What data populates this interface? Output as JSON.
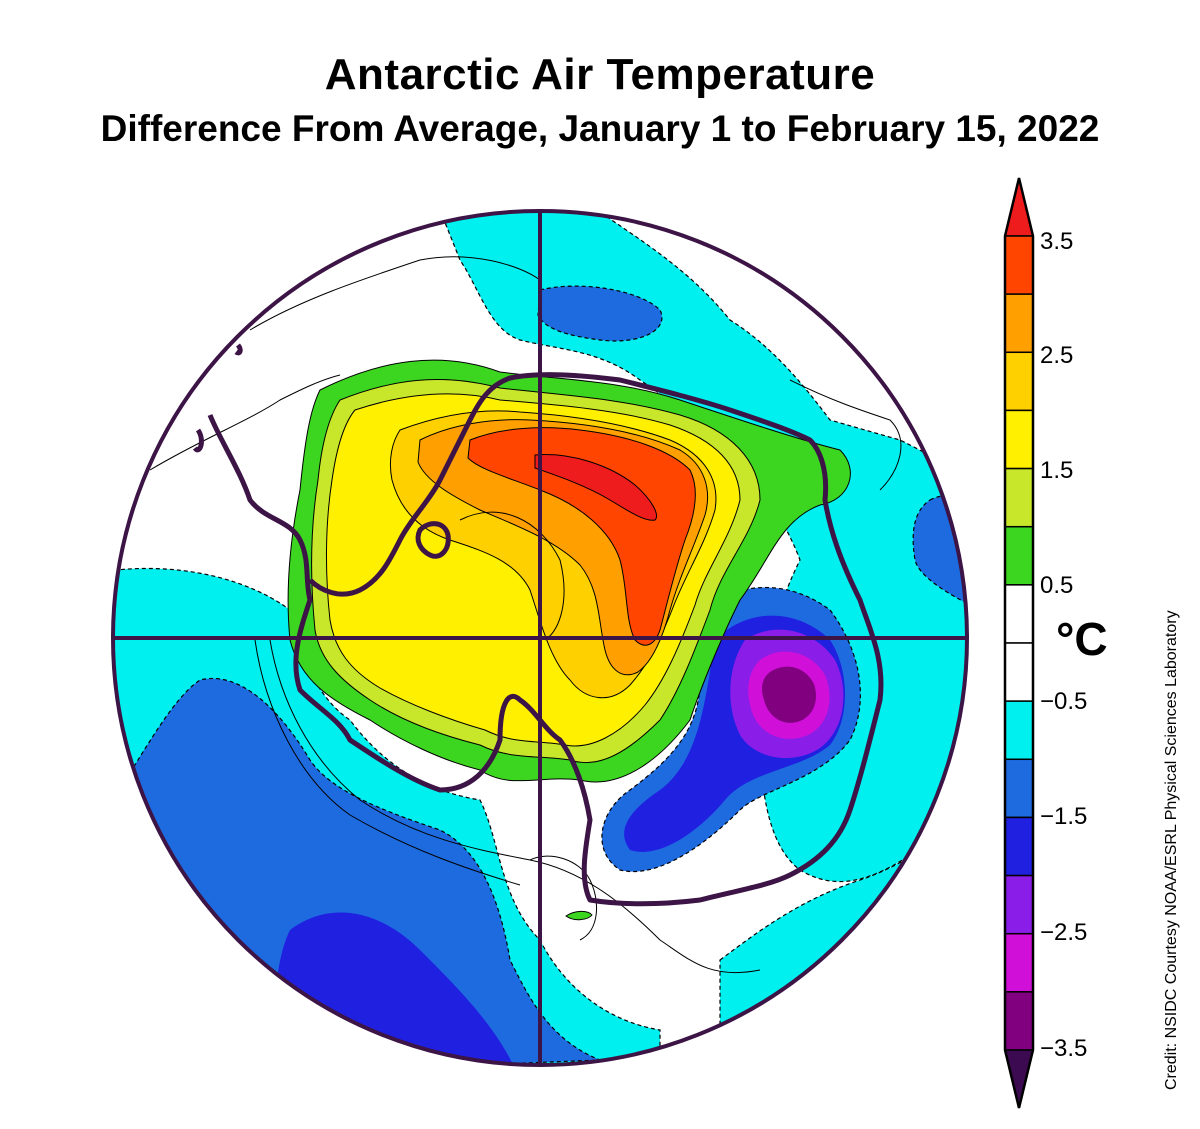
{
  "title": "Antarctic Air Temperature",
  "subtitle": "Difference From Average, January 1 to February 15, 2022",
  "colorbar": {
    "unit": "°C",
    "ticks": [
      "3.5",
      "2.5",
      "1.5",
      "0.5",
      "−0.5",
      "−1.5",
      "−2.5",
      "−3.5"
    ],
    "bins": [
      {
        "range": "above 3.5",
        "color": "#ee1c1c"
      },
      {
        "range": "3 to 3.5",
        "color": "#ff4500"
      },
      {
        "range": "2.5 to 3",
        "color": "#ffa000"
      },
      {
        "range": "2 to 2.5",
        "color": "#ffd000"
      },
      {
        "range": "1.5 to 2",
        "color": "#fff000"
      },
      {
        "range": "1 to 1.5",
        "color": "#c8e62a"
      },
      {
        "range": "0.5 to 1",
        "color": "#3cd620"
      },
      {
        "range": "0 to 0.5",
        "color": "#ffffff"
      },
      {
        "range": "-0.5 to 0",
        "color": "#ffffff"
      },
      {
        "range": "-1 to -0.5",
        "color": "#00f0f0"
      },
      {
        "range": "-1.5 to -1",
        "color": "#1e6be0"
      },
      {
        "range": "-2 to -1.5",
        "color": "#2020e0"
      },
      {
        "range": "-2.5 to -2",
        "color": "#8a1ee8"
      },
      {
        "range": "-3 to -2.5",
        "color": "#d010d8"
      },
      {
        "range": "-3.5 to -3",
        "color": "#800080"
      },
      {
        "range": "below -3.5",
        "color": "#3c0a50"
      }
    ]
  },
  "credit": "Credit: NSIDC Courtesy NOAA/ESRL Physical Sciences Laboratory",
  "colors": {
    "frame": "#3c1446",
    "coast": "#3c1446",
    "contour": "#000000"
  }
}
